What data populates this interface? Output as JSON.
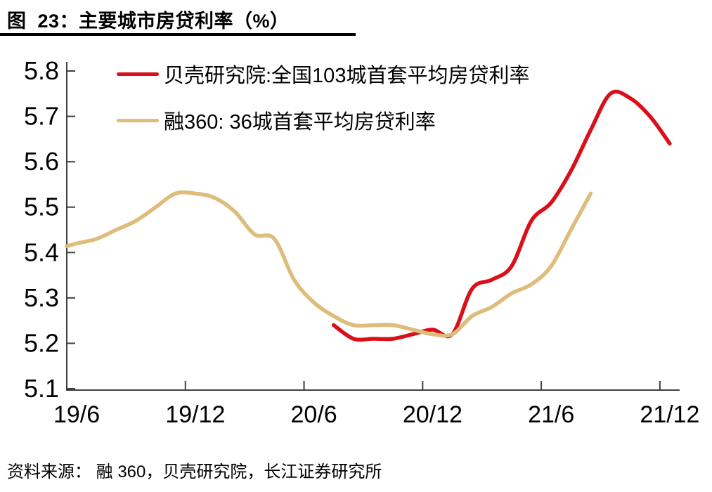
{
  "figure": {
    "title": "图  23：主要城市房贷利率（%）",
    "source": "资料来源： 融 360，贝壳研究院，长江证券研究所"
  },
  "chart_data": {
    "type": "line",
    "title": "主要城市房贷利率（%）",
    "xlabel": "",
    "ylabel": "",
    "ylim": [
      5.1,
      5.8
    ],
    "ytick_step": 0.1,
    "yticks": [
      5.8,
      5.7,
      5.6,
      5.5,
      5.4,
      5.3,
      5.2,
      5.1
    ],
    "categories": [
      "19/6",
      "19/7",
      "19/8",
      "19/9",
      "19/10",
      "19/11",
      "19/12",
      "20/1",
      "20/2",
      "20/3",
      "20/4",
      "20/5",
      "20/6",
      "20/7",
      "20/8",
      "20/9",
      "20/10",
      "20/11",
      "20/12",
      "21/1",
      "21/2",
      "21/3",
      "21/4",
      "21/5",
      "21/6",
      "21/7",
      "21/8",
      "21/9",
      "21/10",
      "21/11",
      "21/12"
    ],
    "xtick_labels": [
      "19/6",
      "19/12",
      "20/6",
      "20/12",
      "21/6",
      "21/12"
    ],
    "xtick_every": 6,
    "grid": false,
    "legend_position": "top-left-inside",
    "axis_color": "#404040",
    "series": [
      {
        "id": "beike",
        "name": "贝壳研究院:全国103城首套平均房贷利率",
        "color": "#D9101A",
        "start_month": "20/7",
        "starts_at_axis": false,
        "values": [
          5.24,
          5.21,
          5.21,
          5.21,
          5.22,
          5.23,
          5.22,
          5.32,
          5.34,
          5.37,
          5.47,
          5.51,
          5.58,
          5.67,
          5.75,
          5.74,
          5.7,
          5.64
        ]
      },
      {
        "id": "rong360",
        "name": "融360: 36城首套平均房贷利率",
        "color": "#DDBC7C",
        "start_month": "19/6",
        "starts_at_axis": true,
        "values": [
          5.42,
          5.43,
          5.45,
          5.47,
          5.5,
          5.53,
          5.53,
          5.52,
          5.49,
          5.44,
          5.43,
          5.34,
          5.29,
          5.26,
          5.24,
          5.24,
          5.24,
          5.23,
          5.22,
          5.22,
          5.26,
          5.28,
          5.31,
          5.33,
          5.37,
          5.45,
          5.53
        ]
      }
    ]
  }
}
